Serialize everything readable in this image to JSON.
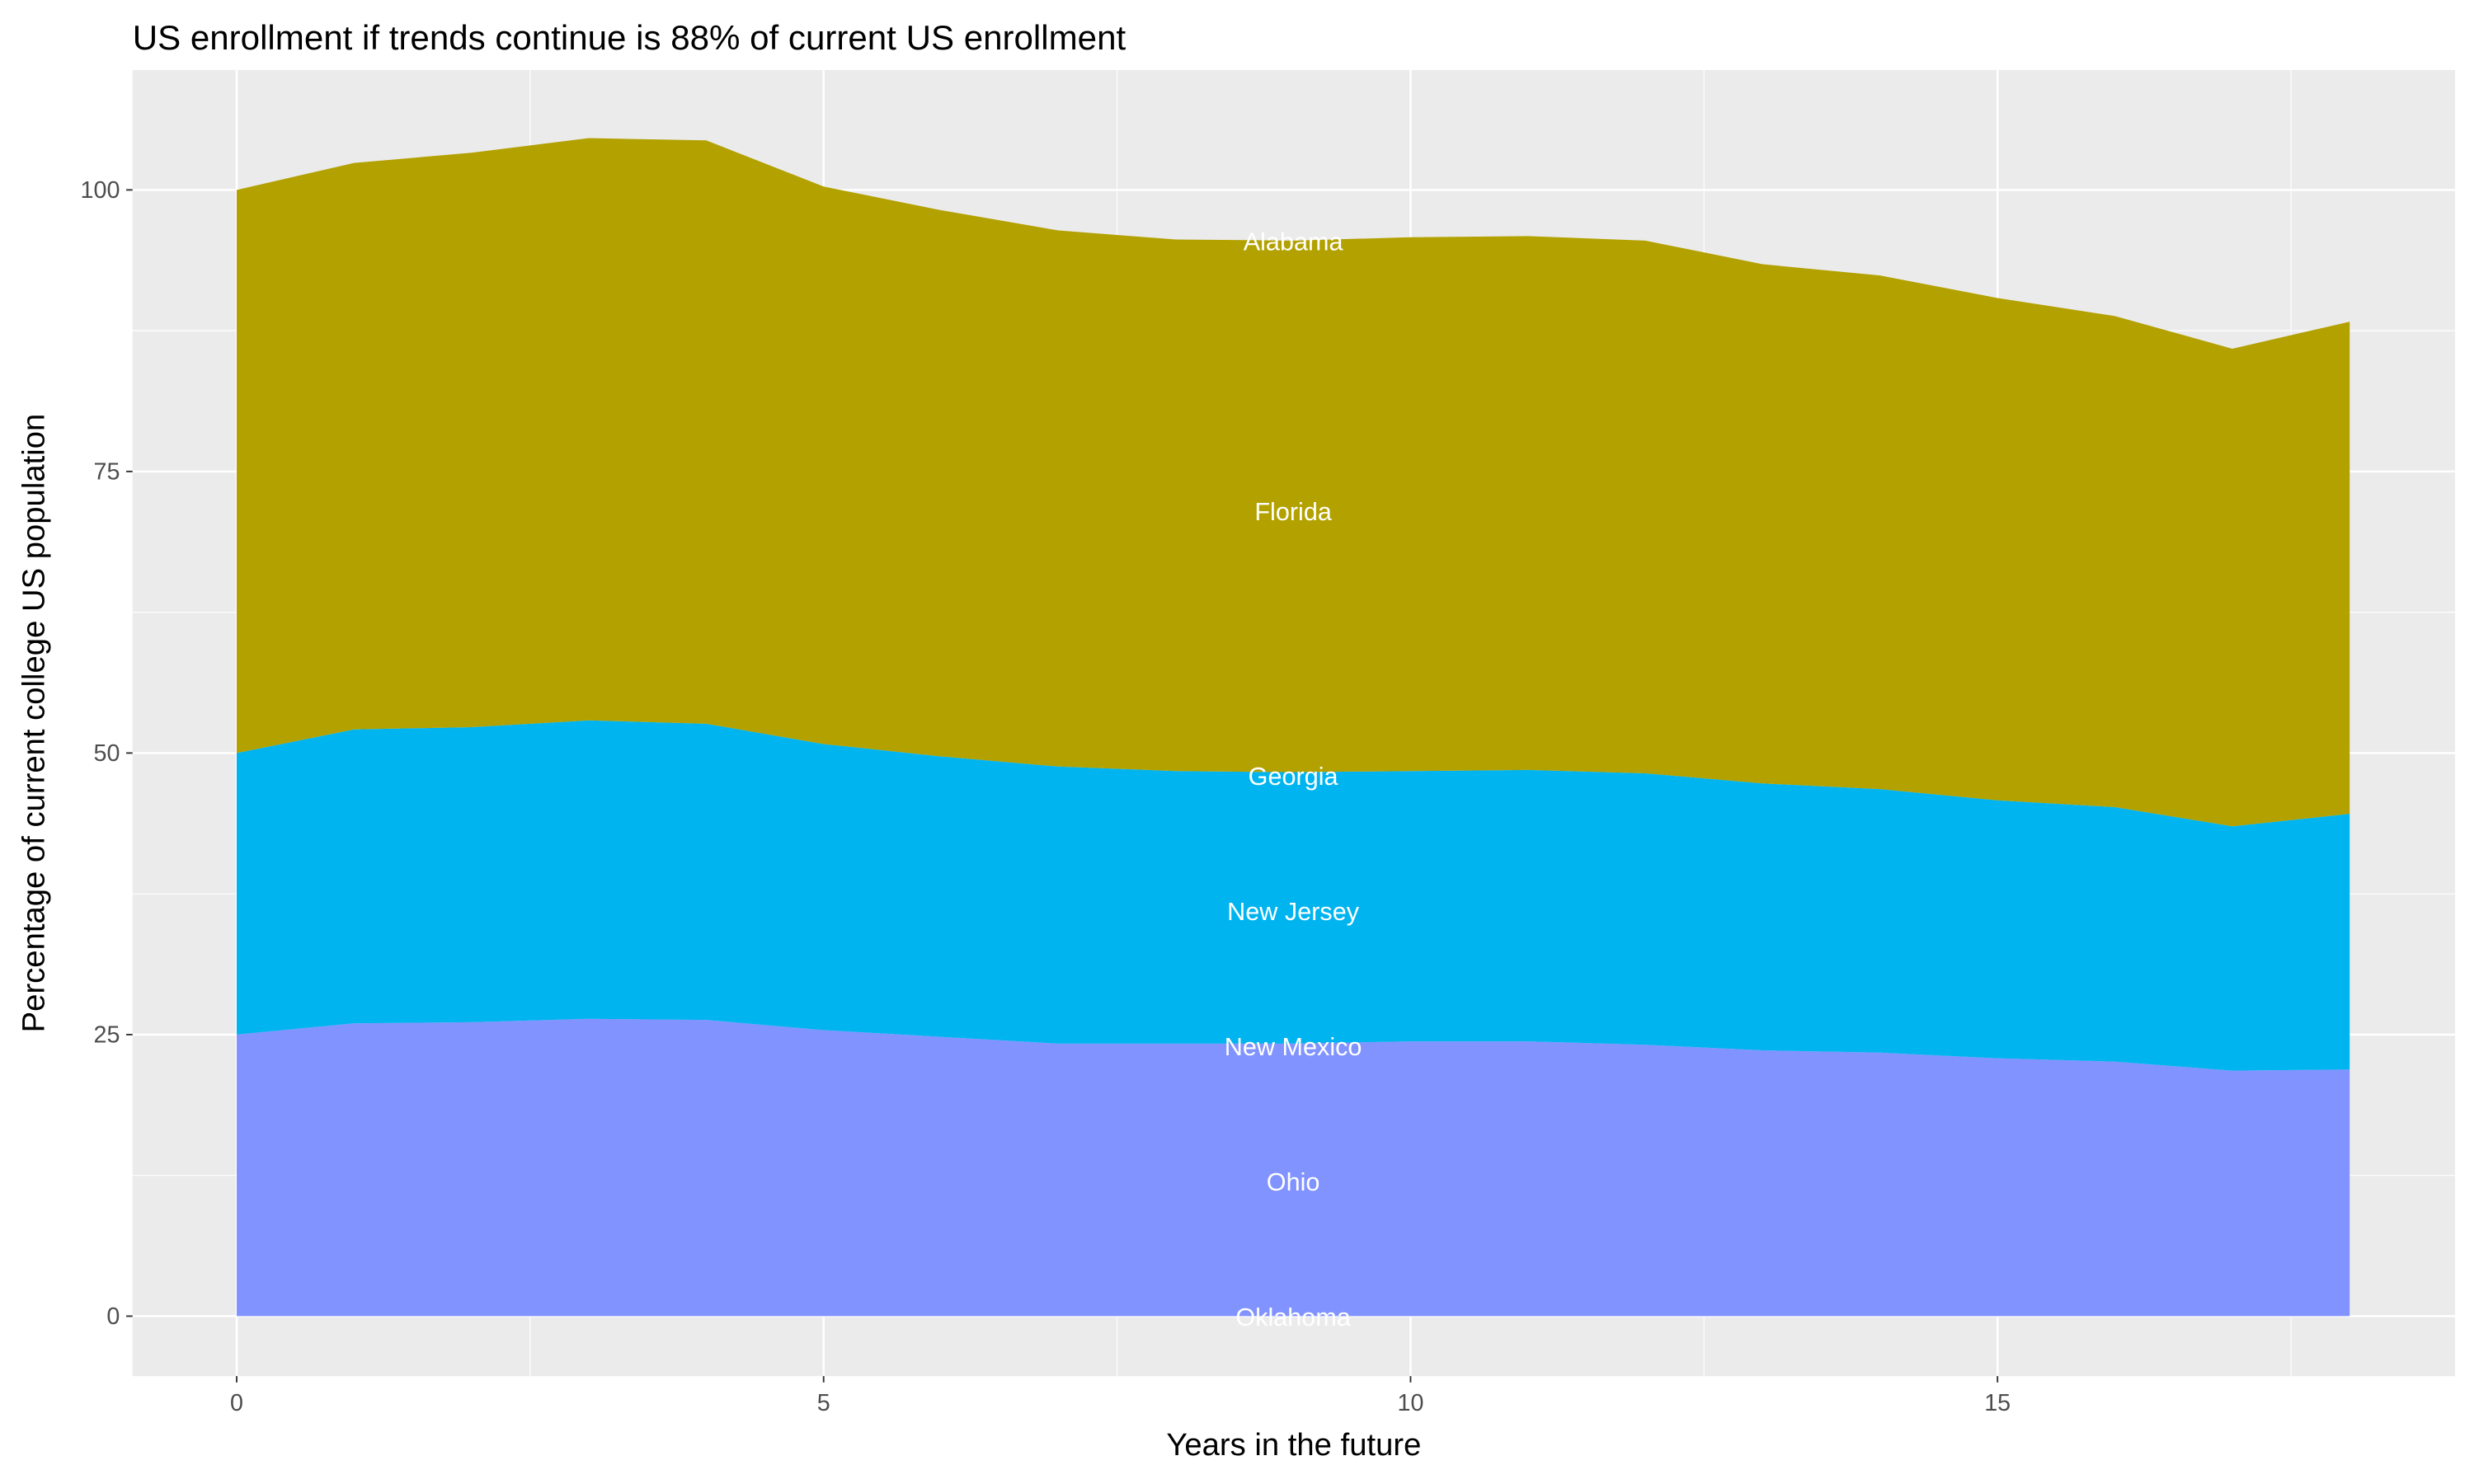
{
  "chart_data": {
    "type": "area",
    "stacked": true,
    "title": "US enrollment if trends continue is 88% of current US enrollment",
    "xlabel": "Years in the future",
    "ylabel": "Percentage of current college US population",
    "xlim": [
      -0.4,
      18.4
    ],
    "ylim": [
      -5.3,
      113.4
    ],
    "x_ticks": [
      0,
      5,
      10,
      15
    ],
    "y_ticks": [
      0,
      25,
      50,
      75,
      100
    ],
    "grid": true,
    "x": [
      0,
      1,
      2,
      3,
      4,
      5,
      6,
      7,
      8,
      9,
      10,
      11,
      12,
      13,
      14,
      15,
      16,
      17,
      18
    ],
    "series": [
      {
        "color": "#8193FF",
        "values": [
          25,
          26,
          26.1,
          26.4,
          26.3,
          25.4,
          24.8,
          24.2,
          24.2,
          24.2,
          24.4,
          24.4,
          24.1,
          23.6,
          23.4,
          22.9,
          22.6,
          21.8,
          21.9
        ]
      },
      {
        "color": "#00B4F0",
        "values": [
          25,
          26.1,
          26.2,
          26.5,
          26.3,
          25.4,
          24.9,
          24.6,
          24.2,
          24.1,
          24,
          24.1,
          24.1,
          23.7,
          23.4,
          22.9,
          22.6,
          21.7,
          22.7
        ]
      },
      {
        "color": "#B3A100",
        "values": [
          50,
          50.3,
          51,
          51.7,
          51.8,
          49.5,
          48.5,
          47.6,
          47.2,
          47.2,
          47.4,
          47.4,
          47.3,
          46.1,
          45.6,
          44.6,
          43.6,
          42.4,
          43.7
        ]
      }
    ],
    "annotations": [
      {
        "text": "Alabama",
        "x": 9,
        "y": 95.5
      },
      {
        "text": "Florida",
        "x": 9,
        "y": 71.5
      },
      {
        "text": "Georgia",
        "x": 9,
        "y": 48
      },
      {
        "text": "New Jersey",
        "x": 9,
        "y": 36
      },
      {
        "text": "New Mexico",
        "x": 9,
        "y": 24
      },
      {
        "text": "Ohio",
        "x": 9,
        "y": 12
      },
      {
        "text": "Oklahoma",
        "x": 9,
        "y": 0
      }
    ]
  }
}
